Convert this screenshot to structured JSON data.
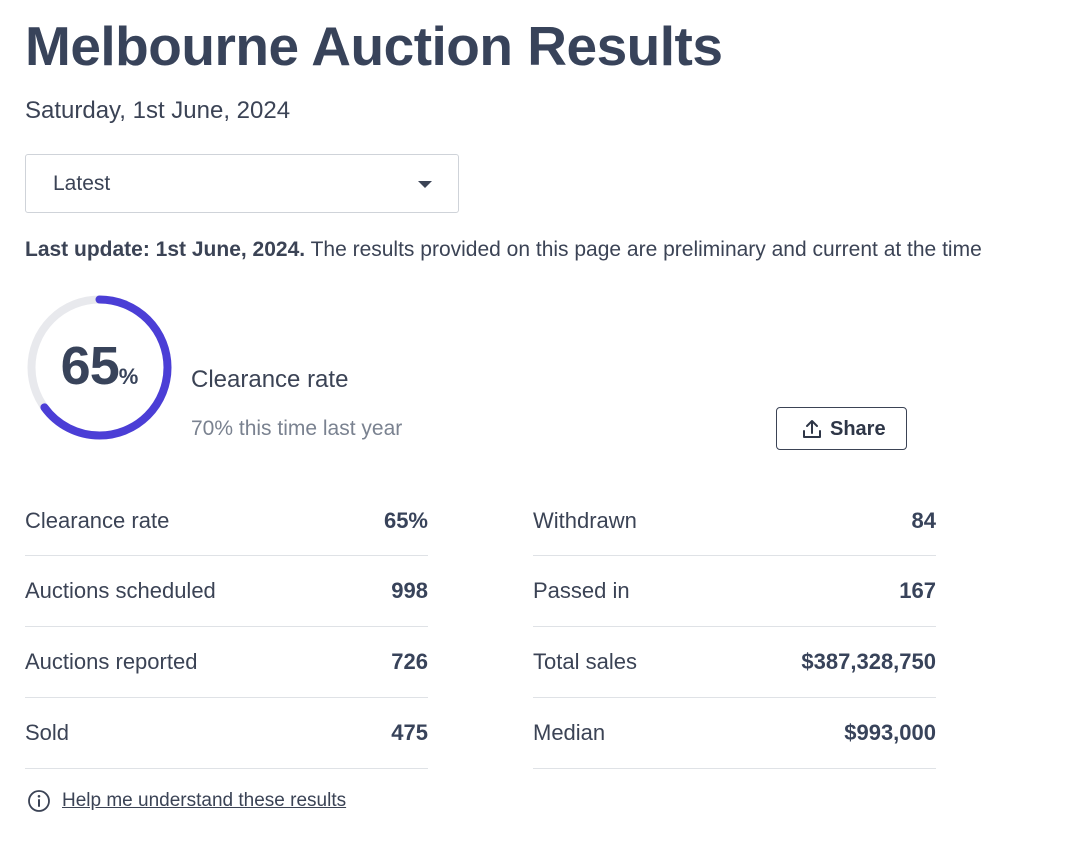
{
  "header": {
    "title": "Melbourne Auction Results",
    "date": "Saturday, 1st June, 2024"
  },
  "period_select": {
    "selected": "Latest"
  },
  "update_notice": {
    "bold": "Last update: 1st June, 2024.",
    "text": " The results provided on this page are preliminary and current at the time"
  },
  "clearance": {
    "value": "65",
    "unit": "%",
    "fraction": 0.65,
    "label": "Clearance rate",
    "comparison": "70% this time last year",
    "ring_color": "#4b3ed6",
    "track_color": "#e8e9ed"
  },
  "share": {
    "label": "Share"
  },
  "stats_left": [
    {
      "label": "Clearance rate",
      "value": "65%"
    },
    {
      "label": "Auctions scheduled",
      "value": "998"
    },
    {
      "label": "Auctions reported",
      "value": "726"
    },
    {
      "label": "Sold",
      "value": "475"
    }
  ],
  "stats_right": [
    {
      "label": "Withdrawn",
      "value": "84"
    },
    {
      "label": "Passed in",
      "value": "167"
    },
    {
      "label": "Total sales",
      "value": "$387,328,750"
    },
    {
      "label": "Median",
      "value": "$993,000"
    }
  ],
  "help": {
    "link": "Help me understand these results",
    "icon": "info-icon"
  }
}
